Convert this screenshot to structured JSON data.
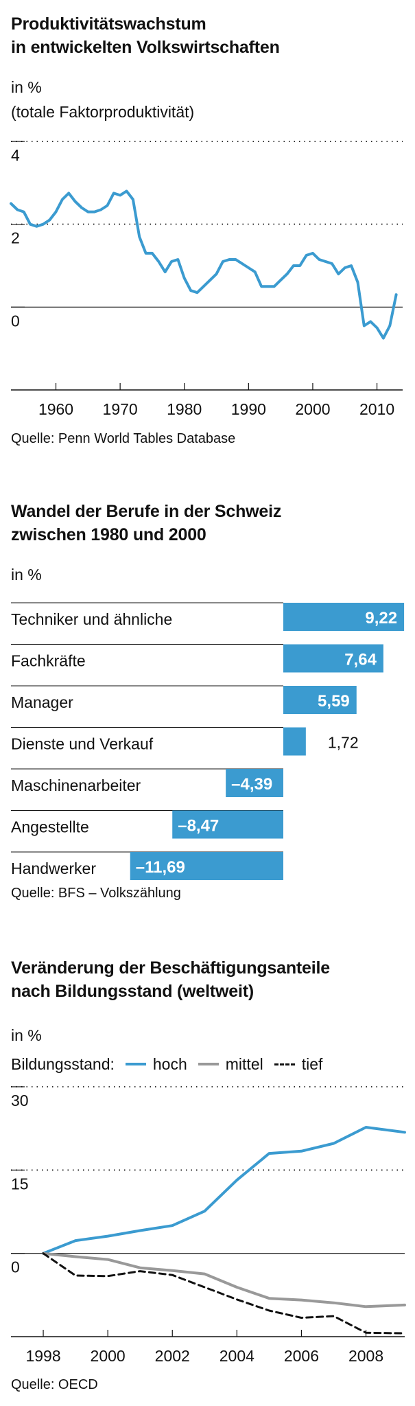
{
  "colors": {
    "blue": "#3b9bd0",
    "gray": "#999999",
    "black": "#111111"
  },
  "chart_data": [
    {
      "type": "line",
      "title": "Produktivitätswachstum\nin entwickelten Volkswirtschaften",
      "title_lines": [
        "Produktivitätswachstum",
        "in entwickelten Volkswirtschaften"
      ],
      "unit": "in %",
      "subtitle": "(totale Faktorproduktivität)",
      "source": "Quelle: Penn World Tables Database",
      "ylim": [
        -2,
        4
      ],
      "yticks": [
        4,
        2,
        0
      ],
      "ytick_labels": [
        "4",
        "2",
        "0"
      ],
      "xlim": [
        1953,
        2014
      ],
      "xticks": [
        1960,
        1970,
        1980,
        1990,
        2000,
        2010
      ],
      "xtick_labels": [
        "1960",
        "1970",
        "1980",
        "1990",
        "2000",
        "2010"
      ],
      "series": [
        {
          "name": "Totale Faktorproduktivität",
          "x": [
            1953,
            1954,
            1955,
            1956,
            1957,
            1958,
            1959,
            1960,
            1961,
            1962,
            1963,
            1964,
            1965,
            1966,
            1967,
            1968,
            1969,
            1970,
            1971,
            1972,
            1973,
            1974,
            1975,
            1976,
            1977,
            1978,
            1979,
            1980,
            1981,
            1982,
            1983,
            1984,
            1985,
            1986,
            1987,
            1988,
            1989,
            1990,
            1991,
            1992,
            1993,
            1994,
            1995,
            1996,
            1997,
            1998,
            1999,
            2000,
            2001,
            2002,
            2003,
            2004,
            2005,
            2006,
            2007,
            2008,
            2009,
            2010,
            2011,
            2012,
            2013
          ],
          "values": [
            2.5,
            2.35,
            2.3,
            2.0,
            1.95,
            2.0,
            2.1,
            2.3,
            2.6,
            2.75,
            2.55,
            2.4,
            2.3,
            2.3,
            2.35,
            2.45,
            2.75,
            2.7,
            2.8,
            2.6,
            1.7,
            1.3,
            1.3,
            1.1,
            0.85,
            1.1,
            1.15,
            0.7,
            0.4,
            0.35,
            0.5,
            0.65,
            0.8,
            1.1,
            1.15,
            1.15,
            1.05,
            0.95,
            0.85,
            0.5,
            0.5,
            0.5,
            0.65,
            0.8,
            1.0,
            1.0,
            1.25,
            1.3,
            1.15,
            1.1,
            1.05,
            0.8,
            0.95,
            1.0,
            0.6,
            -0.45,
            -0.35,
            -0.5,
            -0.75,
            -0.45,
            0.3
          ]
        }
      ]
    },
    {
      "type": "bar",
      "title": "Wandel der Berufe in der Schweiz\nzwischen 1980 und 2000",
      "title_lines": [
        "Wandel der Berufe in der Schweiz",
        "zwischen 1980 und 2000"
      ],
      "unit": "in %",
      "source": "Quelle: BFS – Volkszählung",
      "categories": [
        "Techniker und ähnliche",
        "Fachkräfte",
        "Manager",
        "Dienste und Verkauf",
        "Maschinenarbeiter",
        "Angestellte",
        "Handwerker"
      ],
      "values": [
        9.22,
        7.64,
        5.59,
        1.72,
        -4.39,
        -8.47,
        -11.69
      ],
      "value_labels": [
        "9,22",
        "7,64",
        "5,59",
        "1,72",
        "–4,39",
        "–8,47",
        "–11,69"
      ]
    },
    {
      "type": "line",
      "title": "Veränderung der Beschäftigungsanteile\nnach Bildungsstand (weltweit)",
      "title_lines": [
        "Veränderung der Beschäftigungsanteile",
        "nach Bildungsstand (weltweit)"
      ],
      "unit": "in %",
      "legend_title": "Bildungsstand:",
      "source": "Quelle: OECD",
      "ylim": [
        -15,
        30
      ],
      "yticks": [
        30,
        15,
        0
      ],
      "ytick_labels": [
        "30",
        "15",
        "0"
      ],
      "xlim": [
        1997,
        2009.2
      ],
      "xticks": [
        1998,
        2000,
        2002,
        2004,
        2006,
        2008
      ],
      "xtick_labels": [
        "1998",
        "2000",
        "2002",
        "2004",
        "2006",
        "2008"
      ],
      "series": [
        {
          "name": "hoch",
          "style": "solid",
          "x": [
            1998,
            1999,
            2000,
            2001,
            2002,
            2003,
            2004,
            2005,
            2006,
            2007,
            2008,
            2009.2
          ],
          "values": [
            0,
            2.3,
            3.1,
            4.1,
            5.0,
            7.6,
            13.2,
            18.0,
            18.4,
            19.8,
            22.7,
            21.8
          ]
        },
        {
          "name": "mittel",
          "style": "solid",
          "x": [
            1998,
            1999,
            2000,
            2001,
            2002,
            2003,
            2004,
            2005,
            2006,
            2007,
            2008,
            2009.2
          ],
          "values": [
            0,
            -0.6,
            -1.1,
            -2.6,
            -3.1,
            -3.7,
            -6.1,
            -8.1,
            -8.4,
            -8.9,
            -9.6,
            -9.3
          ]
        },
        {
          "name": "tief",
          "style": "dashed",
          "x": [
            1998,
            1999,
            2000,
            2001,
            2002,
            2003,
            2004,
            2005,
            2006,
            2007,
            2008,
            2009.2
          ],
          "values": [
            0,
            -4.0,
            -4.1,
            -3.2,
            -3.9,
            -6.1,
            -8.3,
            -10.3,
            -11.6,
            -11.3,
            -14.3,
            -14.4
          ]
        }
      ]
    }
  ]
}
